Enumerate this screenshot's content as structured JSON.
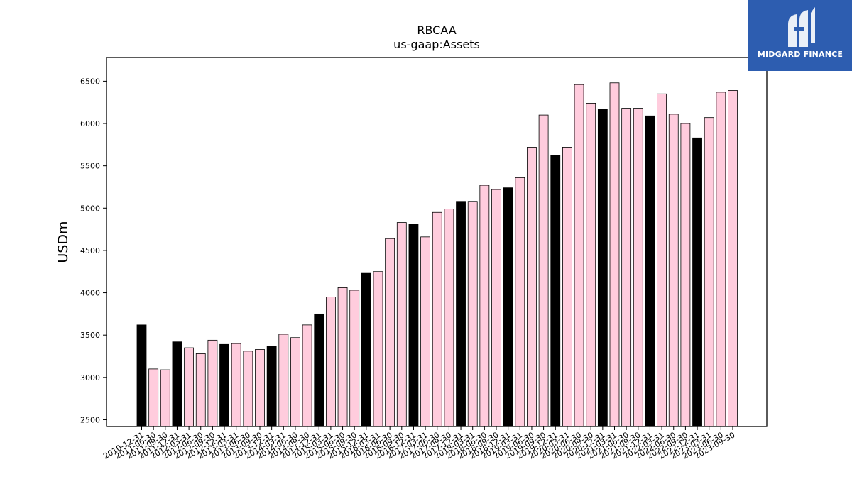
{
  "chart_data": {
    "type": "bar",
    "title": "RBCAA",
    "subtitle": "us-gaap:Assets",
    "xlabel": "",
    "ylabel": "USDm",
    "ylim": [
      2420,
      6780
    ],
    "yticks": [
      2500,
      3000,
      3500,
      4000,
      4500,
      5000,
      5500,
      6000,
      6500
    ],
    "grid": false,
    "categories": [
      "2010-12-31",
      "2011-06-30",
      "2011-09-30",
      "2011-12-31",
      "2012-03-31",
      "2012-06-30",
      "2012-09-30",
      "2012-12-31",
      "2013-03-31",
      "2013-06-30",
      "2013-09-30",
      "2013-12-31",
      "2014-03-31",
      "2014-06-30",
      "2014-09-30",
      "2014-12-31",
      "2015-03-31",
      "2015-06-30",
      "2015-09-30",
      "2015-12-31",
      "2016-03-31",
      "2016-06-30",
      "2016-09-30",
      "2016-12-31",
      "2017-03-31",
      "2017-06-30",
      "2017-09-30",
      "2017-12-31",
      "2018-03-31",
      "2018-06-30",
      "2018-09-30",
      "2018-12-31",
      "2019-03-31",
      "2019-06-30",
      "2019-09-30",
      "2019-12-31",
      "2020-03-31",
      "2020-06-30",
      "2020-09-30",
      "2020-12-31",
      "2021-03-31",
      "2021-06-30",
      "2021-09-30",
      "2021-12-31",
      "2022-03-31",
      "2022-06-30",
      "2022-09-30",
      "2022-12-31",
      "2023-03-31",
      "2023-06-30",
      "2023-09-30"
    ],
    "values": [
      3620,
      3100,
      3090,
      3420,
      3350,
      3280,
      3440,
      3390,
      3400,
      3310,
      3330,
      3370,
      3510,
      3470,
      3620,
      3750,
      3950,
      4060,
      4030,
      4230,
      4250,
      4640,
      4830,
      4810,
      4660,
      4950,
      4990,
      5080,
      5080,
      5270,
      5220,
      5240,
      5360,
      5720,
      6100,
      5620,
      5720,
      6460,
      6240,
      6170,
      6480,
      6180,
      6180,
      6090,
      6350,
      6110,
      6000,
      5830,
      6070,
      6370,
      6390
    ],
    "highlighted": [
      "2010-12-31",
      "2011-12-31",
      "2012-12-31",
      "2013-12-31",
      "2014-12-31",
      "2015-12-31",
      "2016-12-31",
      "2017-12-31",
      "2018-12-31",
      "2019-12-31",
      "2020-12-31",
      "2021-12-31",
      "2022-12-31"
    ],
    "colors": {
      "bar": "#ffccdd",
      "highlight": "#000000",
      "edge": "#000000"
    }
  },
  "logo": {
    "text": "MIDGARD FINANCE",
    "bg": "#2d5db0"
  }
}
